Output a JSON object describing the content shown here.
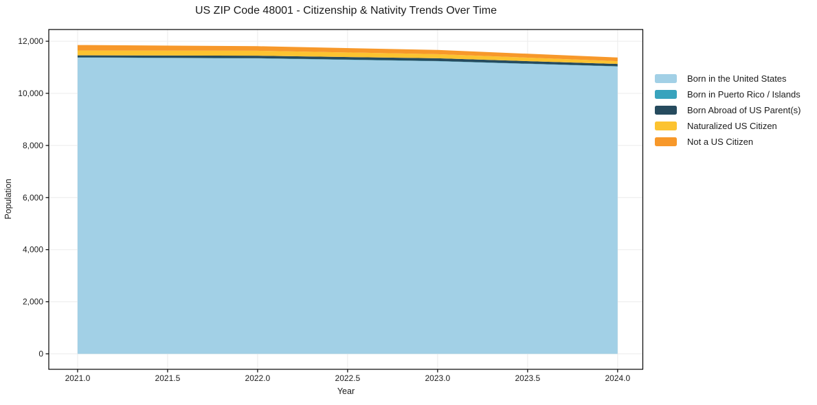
{
  "figure": {
    "title": "US ZIP Code 48001 - Citizenship & Nativity Trends Over Time"
  },
  "chart_data": {
    "type": "area",
    "stacked": true,
    "title": "US ZIP Code 48001 - Citizenship & Nativity Trends Over Time",
    "xlabel": "Year",
    "ylabel": "Population",
    "x": [
      2021,
      2022,
      2023,
      2024
    ],
    "series": [
      {
        "name": "Born in the United States",
        "color": "#a2d0e6",
        "values": [
          11370,
          11340,
          11230,
          11030
        ]
      },
      {
        "name": "Born in Puerto Rico / Islands",
        "color": "#38a3bd",
        "values": [
          10,
          10,
          10,
          10
        ]
      },
      {
        "name": "Born Abroad of US Parent(s)",
        "color": "#264b5e",
        "values": [
          80,
          95,
          105,
          90
        ]
      },
      {
        "name": "Naturalized US Citizen",
        "color": "#fcc330",
        "values": [
          185,
          190,
          160,
          105
        ]
      },
      {
        "name": "Not a US Citizen",
        "color": "#f7982a",
        "values": [
          210,
          175,
          160,
          140
        ]
      }
    ],
    "xlim": [
      2020.84,
      2024.14
    ],
    "ylim": [
      -593,
      12450
    ],
    "xticks": {
      "values": [
        2021.0,
        2021.5,
        2022.0,
        2022.5,
        2023.0,
        2023.5,
        2024.0
      ],
      "labels": [
        "2021.0",
        "2021.5",
        "2022.0",
        "2022.5",
        "2023.0",
        "2023.5",
        "2024.0"
      ]
    },
    "yticks": {
      "values": [
        0,
        2000,
        4000,
        6000,
        8000,
        10000,
        12000
      ],
      "labels": [
        "0",
        "2,000",
        "4,000",
        "6,000",
        "8,000",
        "10,000",
        "12,000"
      ]
    },
    "grid": true,
    "grid_color": "#ebebeb",
    "axis_color": "#000000",
    "text_color": "#1a1a1a",
    "legend_position": "right"
  }
}
